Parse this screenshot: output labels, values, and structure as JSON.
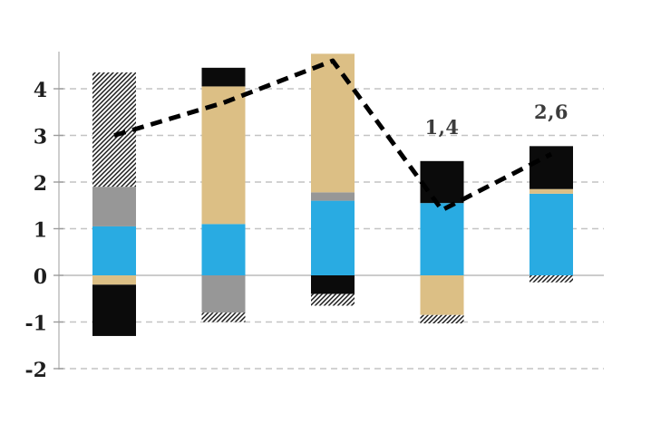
{
  "chart_data": {
    "type": "bar",
    "subtype": "stacked-bars-with-dashed-line-overlay",
    "title": "",
    "xlabel": "",
    "ylabel": "",
    "categories": [
      "",
      "",
      "",
      "",
      ""
    ],
    "series": [
      {
        "name": "blue-segment",
        "color": "#29ABE2",
        "values": [
          1.05,
          1.1,
          1.6,
          1.55,
          1.75
        ]
      },
      {
        "name": "gray-segment",
        "color": "#979797",
        "values": [
          0.85,
          -0.8,
          0.18,
          0,
          0
        ]
      },
      {
        "name": "tan-segment",
        "color": "#DCBF85",
        "values": [
          -0.2,
          2.95,
          2.97,
          -0.85,
          0.1
        ]
      },
      {
        "name": "black-segment",
        "color": "#0B0B0B",
        "values": [
          -1.1,
          0.4,
          -0.4,
          0.9,
          0.92
        ]
      },
      {
        "name": "hatched-segment",
        "color": "#1A1A1A",
        "fill": "diagonal-hatch",
        "values": [
          2.45,
          -0.2,
          -0.25,
          -0.18,
          -0.15
        ]
      }
    ],
    "line_series": {
      "name": "trend-line",
      "style": "dashed",
      "color": "#000000",
      "values": [
        3.0,
        3.7,
        4.6,
        1.4,
        2.6
      ],
      "point_labels": [
        "",
        "",
        "",
        "1,4",
        "2,6"
      ]
    },
    "y_axis": {
      "tick_values": [
        4,
        3,
        2,
        1,
        0,
        -1,
        -2
      ],
      "tick_labels": [
        "4",
        "3",
        "2",
        "1",
        "0",
        "-1",
        "-2"
      ],
      "range": [
        -2,
        4.85
      ]
    },
    "grid": {
      "style": "dashed-horizontal",
      "color": "#C4C4C4",
      "zero_line_color": "#ADADAD",
      "axis_line_color": "#B3B3B3",
      "tick_color": "#9C9C9C"
    },
    "legend": "none",
    "text_colors": {
      "tick_label": "#1E1E1E",
      "data_label": "#3C3C3C"
    }
  }
}
